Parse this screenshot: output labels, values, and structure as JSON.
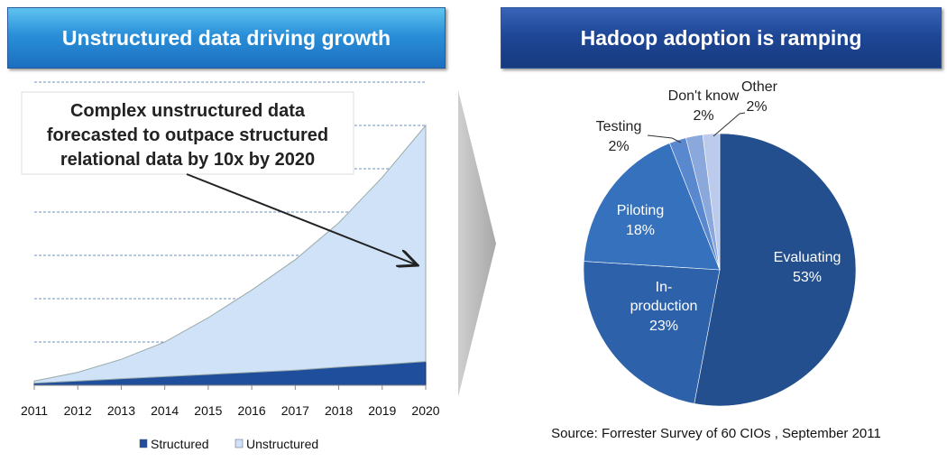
{
  "left_header": "Unstructured data driving growth",
  "right_header": "Hadoop adoption is ramping",
  "chart_data": [
    {
      "type": "area",
      "stacked": true,
      "x": [
        "2011",
        "2012",
        "2013",
        "2014",
        "2015",
        "2016",
        "2017",
        "2018",
        "2019",
        "2020"
      ],
      "series": [
        {
          "name": "Structured",
          "color": "#1f4e9c",
          "values": [
            0.05,
            0.1,
            0.15,
            0.2,
            0.25,
            0.3,
            0.35,
            0.42,
            0.48,
            0.55
          ]
        },
        {
          "name": "Unstructured",
          "color": "#cfe2f8",
          "values": [
            0.05,
            0.2,
            0.45,
            0.8,
            1.31,
            1.9,
            2.55,
            3.33,
            4.32,
            5.45
          ]
        }
      ],
      "ylim": [
        0,
        7
      ],
      "grid": true,
      "legend": "bottom",
      "annotation": "Complex unstructured data forecasted to outpace structured relational data by 10x by 2020"
    },
    {
      "type": "pie",
      "slices": [
        {
          "label": "Evaluating",
          "value": 53,
          "display": "53%",
          "color": "#234f8e"
        },
        {
          "label": "In-production",
          "value": 23,
          "display": "23%",
          "color": "#2d62aa"
        },
        {
          "label": "Piloting",
          "value": 18,
          "display": "18%",
          "color": "#3571bd"
        },
        {
          "label": "Testing",
          "value": 2,
          "display": "2%",
          "color": "#5a88cf"
        },
        {
          "label": "Don't know",
          "value": 2,
          "display": "2%",
          "color": "#8ba8dc"
        },
        {
          "label": "Other",
          "value": 2,
          "display": "2%",
          "color": "#bccbeb"
        }
      ],
      "source": "Source:  Forrester Survey of 60 CIOs , September 2011"
    }
  ]
}
